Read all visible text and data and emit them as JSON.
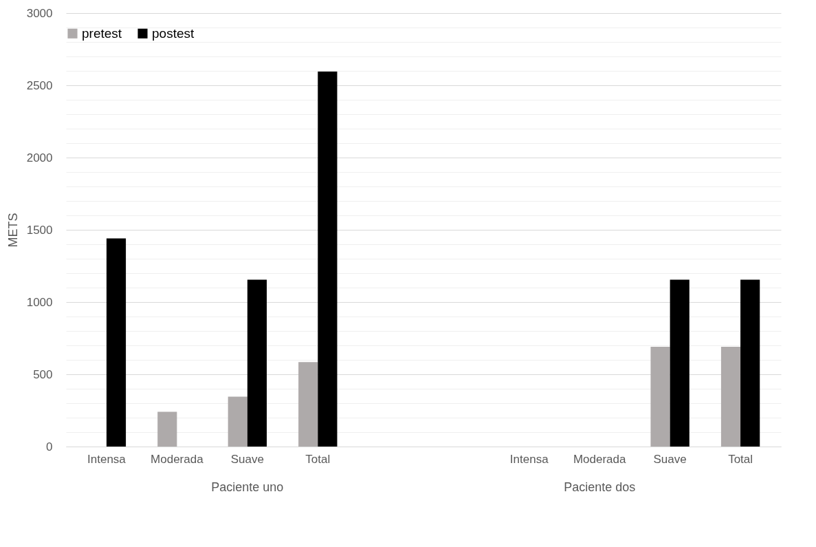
{
  "chart_data": {
    "type": "bar",
    "ylabel": "METS",
    "categories": [
      "Intensa",
      "Moderada",
      "Suave",
      "Total",
      null,
      null,
      "Intensa",
      "Moderada",
      "Suave",
      "Total"
    ],
    "series": [
      {
        "name": "pretest",
        "color": "#aeaaaa",
        "values": [
          0,
          240,
          345,
          585,
          null,
          null,
          0,
          0,
          690,
          690
        ]
      },
      {
        "name": "postest",
        "color": "#000000",
        "values": [
          1440,
          0,
          1155,
          2595,
          null,
          null,
          0,
          0,
          1155,
          1155
        ]
      }
    ],
    "ylim": [
      0,
      3000
    ],
    "yticks": [
      0,
      {
        "value": 100,
        "label": null
      },
      {
        "value": 200,
        "label": null
      },
      {
        "value": 300,
        "label": null
      },
      {
        "value": 400,
        "label": null
      },
      500,
      {
        "value": 600,
        "label": null
      },
      {
        "value": 700,
        "label": null
      },
      {
        "value": 800,
        "label": null
      },
      {
        "value": 900,
        "label": null
      },
      1000,
      {
        "value": 1100,
        "label": null
      },
      {
        "value": 1200,
        "label": null
      },
      {
        "value": 1300,
        "label": null
      },
      {
        "value": 1400,
        "label": null
      },
      1500,
      {
        "value": 1600,
        "label": null
      },
      {
        "value": 1700,
        "label": null
      },
      {
        "value": 1800,
        "label": null
      },
      {
        "value": 1900,
        "label": null
      },
      2000,
      {
        "value": 2100,
        "label": null
      },
      {
        "value": 2200,
        "label": null
      },
      {
        "value": 2300,
        "label": null
      },
      {
        "value": 2400,
        "label": null
      },
      2500,
      {
        "value": 2600,
        "label": null
      },
      {
        "value": 2700,
        "label": null
      },
      {
        "value": 2800,
        "label": null
      },
      {
        "value": 2900,
        "label": null
      },
      3000
    ],
    "grid": true,
    "legend": "top",
    "annotations": [
      "Paciente uno",
      "Paciente dos"
    ]
  }
}
